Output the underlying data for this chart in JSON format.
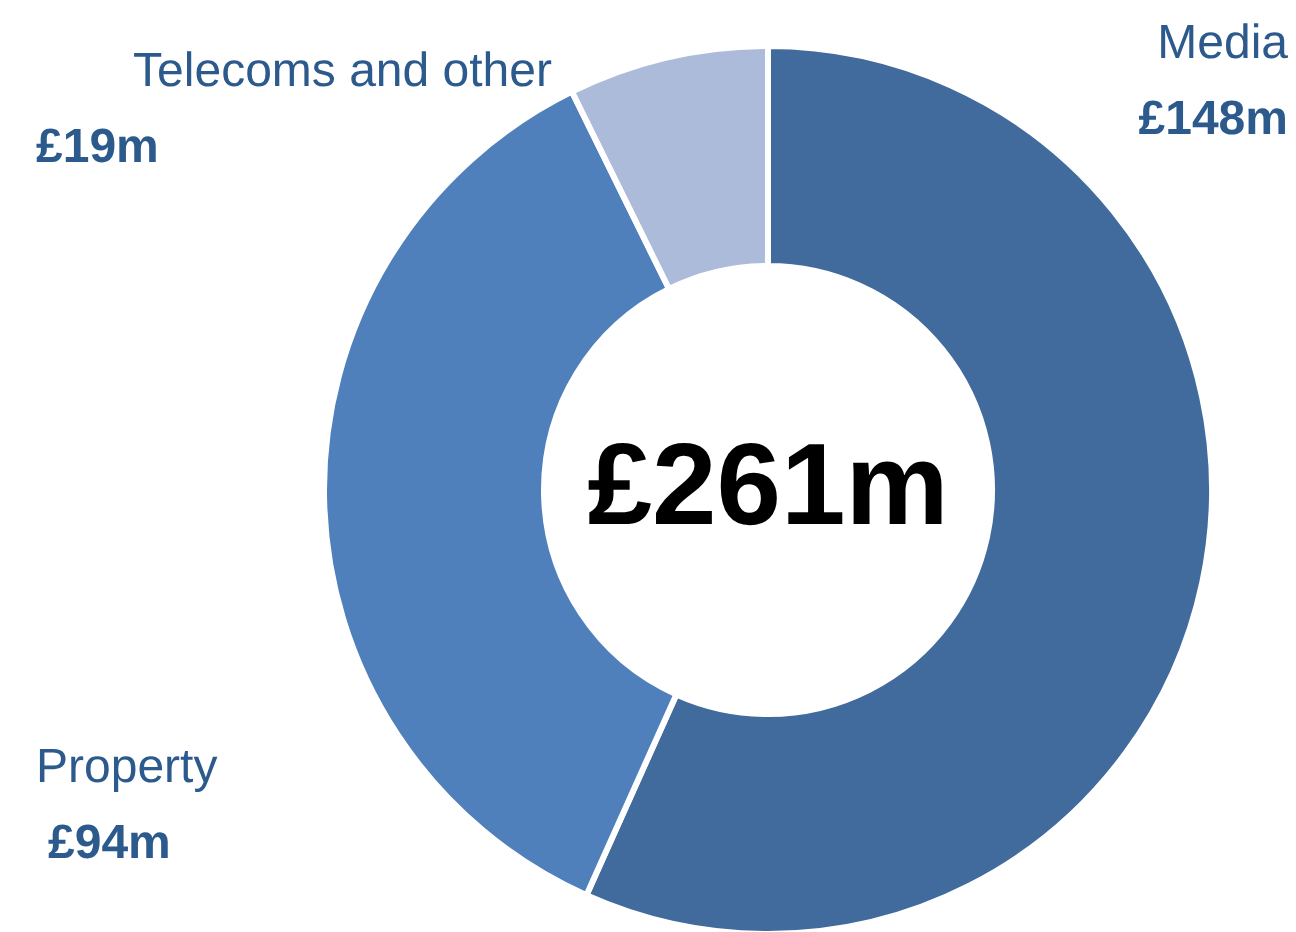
{
  "chart_data": {
    "type": "donut",
    "categories": [
      "Media",
      "Property",
      "Telecoms and other"
    ],
    "values": [
      148,
      94,
      19
    ],
    "value_labels": [
      "£148m",
      "£94m",
      "£19m"
    ],
    "colors": [
      "#416b9c",
      "#4f80bb",
      "#adbbdb"
    ],
    "annotations": [
      "£261m"
    ]
  }
}
